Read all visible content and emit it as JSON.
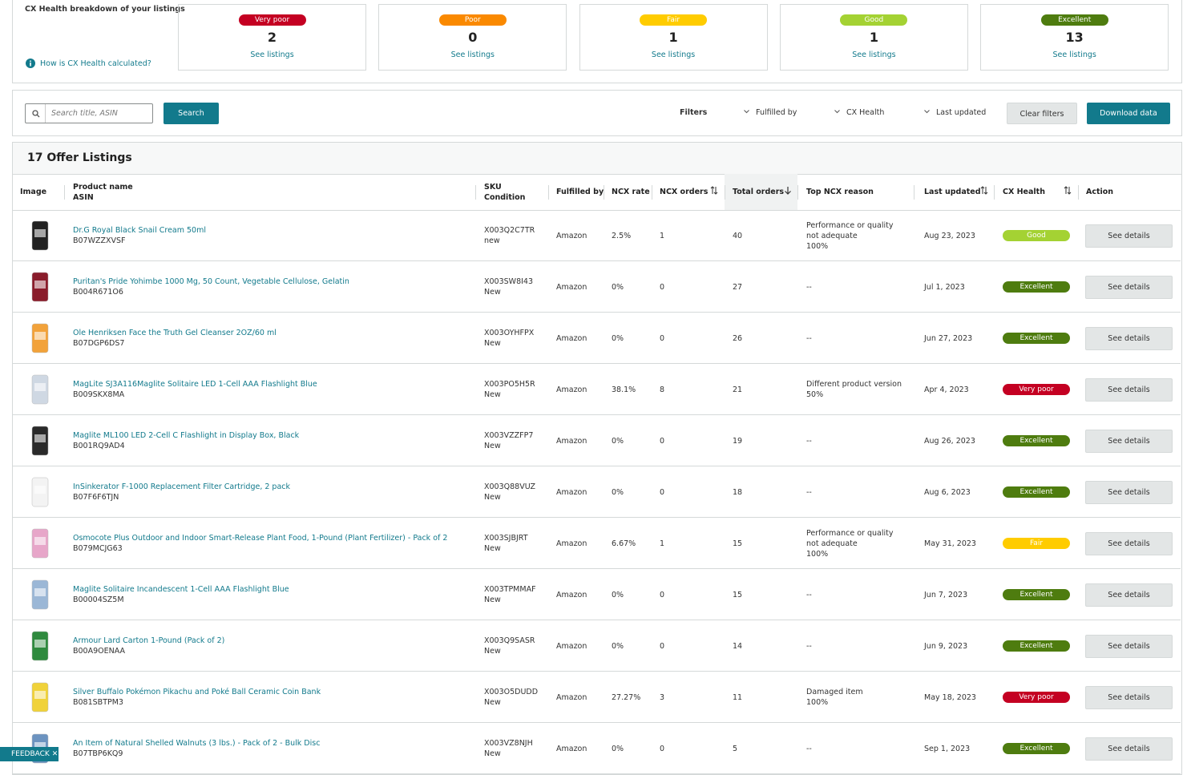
{
  "breakdown": {
    "title": "CX Health breakdown of your listings",
    "help_link": "How is CX Health calculated?",
    "cards": [
      {
        "label": "Very poor",
        "count": 2,
        "link": "See listings",
        "color": "#c40022"
      },
      {
        "label": "Poor",
        "count": 0,
        "link": "See listings",
        "color": "#fa8900"
      },
      {
        "label": "Fair",
        "count": 1,
        "link": "See listings",
        "color": "#ffcc00"
      },
      {
        "label": "Good",
        "count": 1,
        "link": "See listings",
        "color": "#a4d233"
      },
      {
        "label": "Excellent",
        "count": 13,
        "link": "See listings",
        "color": "#4e7c0f"
      }
    ]
  },
  "filter_bar": {
    "search_placeholder": "Search title, ASIN",
    "search_button": "Search",
    "filters_label": "Filters",
    "dropdowns": [
      "Fulfilled by",
      "CX Health",
      "Last updated"
    ],
    "clear_button": "Clear filters",
    "download_button": "Download data"
  },
  "table": {
    "title": "17 Offer Listings",
    "headers": [
      "Image",
      [
        "Product name",
        "ASIN"
      ],
      [
        "SKU",
        "Condition"
      ],
      "Fulfilled by",
      "NCX rate",
      "NCX orders",
      "Total orders",
      "Top NCX reason",
      "Last updated",
      "CX Health",
      "Action"
    ],
    "rows": [
      {
        "name": "Dr.G Royal Black Snail Cream 50ml",
        "asin": "B07WZZXVSF",
        "sku": "X003Q2C7TR",
        "condition": "new",
        "fulfilled_by": "Amazon",
        "ncx_rate": "2.5%",
        "ncx_orders": 1,
        "total_orders": 40,
        "reason": [
          "Performance or quality not adequate",
          "100%"
        ],
        "last_updated": "Aug 23, 2023",
        "cx_health": "Good",
        "cx_health_color": "#a4d233",
        "action": "See details"
      },
      {
        "name": "Puritan's Pride Yohimbe 1000 Mg, 50 Count, Vegetable Cellulose, Gelatin",
        "asin": "B004R671O6",
        "sku": "X003SW8I43",
        "condition": "New",
        "fulfilled_by": "Amazon",
        "ncx_rate": "0%",
        "ncx_orders": 0,
        "total_orders": 27,
        "reason": [
          "--"
        ],
        "last_updated": "Jul 1, 2023",
        "cx_health": "Excellent",
        "cx_health_color": "#4e7c0f",
        "action": "See details"
      },
      {
        "name": "Ole Henriksen Face the Truth Gel Cleanser 2OZ/60 ml",
        "asin": "B07DGP6DS7",
        "sku": "X003OYHFPX",
        "condition": "New",
        "fulfilled_by": "Amazon",
        "ncx_rate": "0%",
        "ncx_orders": 0,
        "total_orders": 26,
        "reason": [
          "--"
        ],
        "last_updated": "Jun 27, 2023",
        "cx_health": "Excellent",
        "cx_health_color": "#4e7c0f",
        "action": "See details"
      },
      {
        "name": "MagLite SJ3A116Maglite Solitaire LED 1-Cell AAA Flashlight Blue",
        "asin": "B009SKX8MA",
        "sku": "X003PO5H5R",
        "condition": "New",
        "fulfilled_by": "Amazon",
        "ncx_rate": "38.1%",
        "ncx_orders": 8,
        "total_orders": 21,
        "reason": [
          "Different product version",
          "50%"
        ],
        "last_updated": "Apr 4, 2023",
        "cx_health": "Very poor",
        "cx_health_color": "#c40022",
        "action": "See details"
      },
      {
        "name": "Maglite ML100 LED 2-Cell C Flashlight in Display Box, Black",
        "asin": "B001RQ9AD4",
        "sku": "X003VZZFP7",
        "condition": "New",
        "fulfilled_by": "Amazon",
        "ncx_rate": "0%",
        "ncx_orders": 0,
        "total_orders": 19,
        "reason": [
          "--"
        ],
        "last_updated": "Aug 26, 2023",
        "cx_health": "Excellent",
        "cx_health_color": "#4e7c0f",
        "action": "See details"
      },
      {
        "name": "InSinkerator F-1000 Replacement Filter Cartridge, 2 pack",
        "asin": "B07F6F6TJN",
        "sku": "X003Q88VUZ",
        "condition": "New",
        "fulfilled_by": "Amazon",
        "ncx_rate": "0%",
        "ncx_orders": 0,
        "total_orders": 18,
        "reason": [
          "--"
        ],
        "last_updated": "Aug 6, 2023",
        "cx_health": "Excellent",
        "cx_health_color": "#4e7c0f",
        "action": "See details"
      },
      {
        "name": "Osmocote Plus Outdoor and Indoor Smart-Release Plant Food, 1-Pound (Plant Fertilizer) - Pack of 2",
        "asin": "B079MCJG63",
        "sku": "X003SJBJRT",
        "condition": "New",
        "fulfilled_by": "Amazon",
        "ncx_rate": "6.67%",
        "ncx_orders": 1,
        "total_orders": 15,
        "reason": [
          "Performance or quality not adequate",
          "100%"
        ],
        "last_updated": "May 31, 2023",
        "cx_health": "Fair",
        "cx_health_color": "#ffcc00",
        "action": "See details"
      },
      {
        "name": "Maglite Solitaire Incandescent 1-Cell AAA Flashlight Blue",
        "asin": "B00004SZ5M",
        "sku": "X003TPMMAF",
        "condition": "New",
        "fulfilled_by": "Amazon",
        "ncx_rate": "0%",
        "ncx_orders": 0,
        "total_orders": 15,
        "reason": [
          "--"
        ],
        "last_updated": "Jun 7, 2023",
        "cx_health": "Excellent",
        "cx_health_color": "#4e7c0f",
        "action": "See details"
      },
      {
        "name": "Armour Lard Carton 1-Pound (Pack of 2)",
        "asin": "B00A9OENAA",
        "sku": "X003Q9SASR",
        "condition": "New",
        "fulfilled_by": "Amazon",
        "ncx_rate": "0%",
        "ncx_orders": 0,
        "total_orders": 14,
        "reason": [
          "--"
        ],
        "last_updated": "Jun 9, 2023",
        "cx_health": "Excellent",
        "cx_health_color": "#4e7c0f",
        "action": "See details"
      },
      {
        "name": "Silver Buffalo Pokémon Pikachu and Poké Ball Ceramic Coin Bank",
        "asin": "B081SBTPM3",
        "sku": "X003O5DUDD",
        "condition": "New",
        "fulfilled_by": "Amazon",
        "ncx_rate": "27.27%",
        "ncx_orders": 3,
        "total_orders": 11,
        "reason": [
          "Damaged item",
          "100%"
        ],
        "last_updated": "May 18, 2023",
        "cx_health": "Very poor",
        "cx_health_color": "#c40022",
        "action": "See details"
      },
      {
        "name": "An Item of Natural Shelled Walnuts (3 lbs.) - Pack of 2 - Bulk Disc",
        "asin": "B07TBP6KQ9",
        "sku": "X003VZ8NJH",
        "condition": "New",
        "fulfilled_by": "Amazon",
        "ncx_rate": "0%",
        "ncx_orders": 0,
        "total_orders": 5,
        "reason": [
          "--"
        ],
        "last_updated": "Sep 1, 2023",
        "cx_health": "Excellent",
        "cx_health_color": "#4e7c0f",
        "action": "See details"
      }
    ]
  },
  "feedback": "FEEDBACK"
}
